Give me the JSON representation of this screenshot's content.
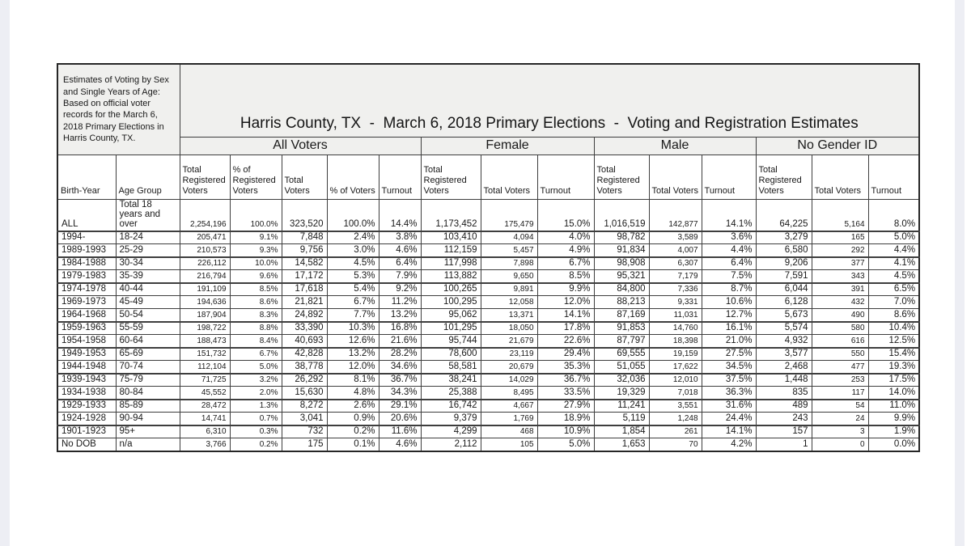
{
  "notes": "Estimates of Voting by Sex and Single Years of Age: Based on official voter records for the March 6, 2018 Primary Elections in Harris County, TX.",
  "title": "Harris County, TX  -  March 6, 2018 Primary Elections  -  Voting and Registration Estimates",
  "table": {
    "groups": [
      {
        "label": "All Voters"
      },
      {
        "label": "Female"
      },
      {
        "label": "Male"
      },
      {
        "label": "No Gender ID"
      }
    ],
    "row_header_columns": [
      "Birth-Year",
      "Age Group"
    ],
    "sub_columns": [
      "Total Registered Voters",
      "% of Registered Voters",
      "Total Voters",
      "% of Voters",
      "Turnout",
      "Total Registered Voters",
      "Total Voters",
      "Turnout",
      "Total Registered Voters",
      "Total Voters",
      "Turnout",
      "Total Registered Voters",
      "Total Voters",
      "Turnout"
    ],
    "rows": [
      {
        "birth_year": "ALL",
        "age_group": "Total 18 years and over",
        "values": [
          "2,254,196",
          "100.0%",
          "323,520",
          "100.0%",
          "14.4%",
          "1,173,452",
          "175,479",
          "15.0%",
          "1,016,519",
          "142,877",
          "14.1%",
          "64,225",
          "5,164",
          "8.0%"
        ]
      },
      {
        "birth_year": "1994-",
        "age_group": "18-24",
        "values": [
          "205,471",
          "9.1%",
          "7,848",
          "2.4%",
          "3.8%",
          "103,410",
          "4,094",
          "4.0%",
          "98,782",
          "3,589",
          "3.6%",
          "3,279",
          "165",
          "5.0%"
        ]
      },
      {
        "birth_year": "1989-1993",
        "age_group": "25-29",
        "values": [
          "210,573",
          "9.3%",
          "9,756",
          "3.0%",
          "4.6%",
          "112,159",
          "5,457",
          "4.9%",
          "91,834",
          "4,007",
          "4.4%",
          "6,580",
          "292",
          "4.4%"
        ]
      },
      {
        "birth_year": "1984-1988",
        "age_group": "30-34",
        "values": [
          "226,112",
          "10.0%",
          "14,582",
          "4.5%",
          "6.4%",
          "117,998",
          "7,898",
          "6.7%",
          "98,908",
          "6,307",
          "6.4%",
          "9,206",
          "377",
          "4.1%"
        ]
      },
      {
        "birth_year": "1979-1983",
        "age_group": "35-39",
        "values": [
          "216,794",
          "9.6%",
          "17,172",
          "5.3%",
          "7.9%",
          "113,882",
          "9,650",
          "8.5%",
          "95,321",
          "7,179",
          "7.5%",
          "7,591",
          "343",
          "4.5%"
        ]
      },
      {
        "birth_year": "1974-1978",
        "age_group": "40-44",
        "values": [
          "191,109",
          "8.5%",
          "17,618",
          "5.4%",
          "9.2%",
          "100,265",
          "9,891",
          "9.9%",
          "84,800",
          "7,336",
          "8.7%",
          "6,044",
          "391",
          "6.5%"
        ]
      },
      {
        "birth_year": "1969-1973",
        "age_group": "45-49",
        "values": [
          "194,636",
          "8.6%",
          "21,821",
          "6.7%",
          "11.2%",
          "100,295",
          "12,058",
          "12.0%",
          "88,213",
          "9,331",
          "10.6%",
          "6,128",
          "432",
          "7.0%"
        ]
      },
      {
        "birth_year": "1964-1968",
        "age_group": "50-54",
        "values": [
          "187,904",
          "8.3%",
          "24,892",
          "7.7%",
          "13.2%",
          "95,062",
          "13,371",
          "14.1%",
          "87,169",
          "11,031",
          "12.7%",
          "5,673",
          "490",
          "8.6%"
        ]
      },
      {
        "birth_year": "1959-1963",
        "age_group": "55-59",
        "values": [
          "198,722",
          "8.8%",
          "33,390",
          "10.3%",
          "16.8%",
          "101,295",
          "18,050",
          "17.8%",
          "91,853",
          "14,760",
          "16.1%",
          "5,574",
          "580",
          "10.4%"
        ]
      },
      {
        "birth_year": "1954-1958",
        "age_group": "60-64",
        "values": [
          "188,473",
          "8.4%",
          "40,693",
          "12.6%",
          "21.6%",
          "95,744",
          "21,679",
          "22.6%",
          "87,797",
          "18,398",
          "21.0%",
          "4,932",
          "616",
          "12.5%"
        ]
      },
      {
        "birth_year": "1949-1953",
        "age_group": "65-69",
        "values": [
          "151,732",
          "6.7%",
          "42,828",
          "13.2%",
          "28.2%",
          "78,600",
          "23,119",
          "29.4%",
          "69,555",
          "19,159",
          "27.5%",
          "3,577",
          "550",
          "15.4%"
        ]
      },
      {
        "birth_year": "1944-1948",
        "age_group": "70-74",
        "values": [
          "112,104",
          "5.0%",
          "38,778",
          "12.0%",
          "34.6%",
          "58,581",
          "20,679",
          "35.3%",
          "51,055",
          "17,622",
          "34.5%",
          "2,468",
          "477",
          "19.3%"
        ]
      },
      {
        "birth_year": "1939-1943",
        "age_group": "75-79",
        "values": [
          "71,725",
          "3.2%",
          "26,292",
          "8.1%",
          "36.7%",
          "38,241",
          "14,029",
          "36.7%",
          "32,036",
          "12,010",
          "37.5%",
          "1,448",
          "253",
          "17.5%"
        ]
      },
      {
        "birth_year": "1934-1938",
        "age_group": "80-84",
        "values": [
          "45,552",
          "2.0%",
          "15,630",
          "4.8%",
          "34.3%",
          "25,388",
          "8,495",
          "33.5%",
          "19,329",
          "7,018",
          "36.3%",
          "835",
          "117",
          "14.0%"
        ]
      },
      {
        "birth_year": "1929-1933",
        "age_group": "85-89",
        "values": [
          "28,472",
          "1.3%",
          "8,272",
          "2.6%",
          "29.1%",
          "16,742",
          "4,667",
          "27.9%",
          "11,241",
          "3,551",
          "31.6%",
          "489",
          "54",
          "11.0%"
        ]
      },
      {
        "birth_year": "1924-1928",
        "age_group": "90-94",
        "values": [
          "14,741",
          "0.7%",
          "3,041",
          "0.9%",
          "20.6%",
          "9,379",
          "1,769",
          "18.9%",
          "5,119",
          "1,248",
          "24.4%",
          "243",
          "24",
          "9.9%"
        ]
      },
      {
        "birth_year": "1901-1923",
        "age_group": "95+",
        "values": [
          "6,310",
          "0.3%",
          "732",
          "0.2%",
          "11.6%",
          "4,299",
          "468",
          "10.9%",
          "1,854",
          "261",
          "14.1%",
          "157",
          "3",
          "1.9%"
        ]
      },
      {
        "birth_year": "No DOB",
        "age_group": "n/a",
        "values": [
          "3,766",
          "0.2%",
          "175",
          "0.1%",
          "4.6%",
          "2,112",
          "105",
          "5.0%",
          "1,653",
          "70",
          "4.2%",
          "1",
          "0",
          "0.0%"
        ]
      }
    ]
  }
}
